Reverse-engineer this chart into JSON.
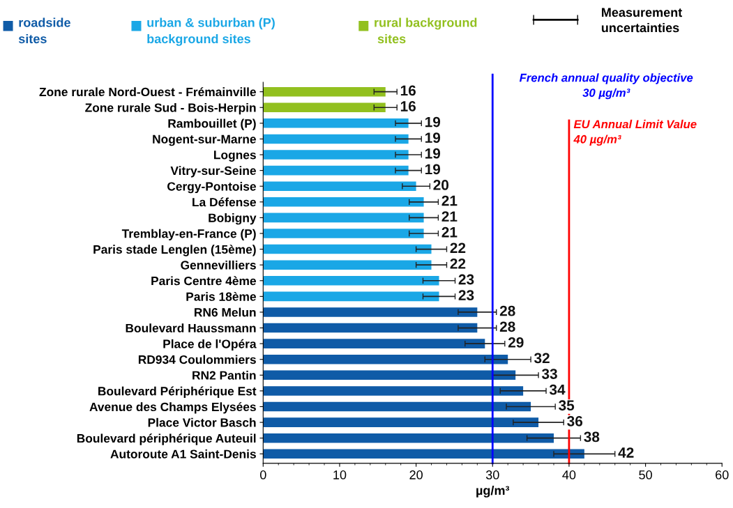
{
  "chart_data": {
    "type": "bar",
    "orientation": "horizontal",
    "stacked": false,
    "categories": [
      "Zone rurale Nord-Ouest - Frémainville",
      "Zone rurale Sud - Bois-Herpin",
      "Rambouillet (P)",
      "Nogent-sur-Marne",
      "Lognes",
      "Vitry-sur-Seine",
      "Cergy-Pontoise",
      "La Défense",
      "Bobigny",
      "Tremblay-en-France (P)",
      "Paris stade Lenglen (15ème)",
      "Gennevilliers",
      "Paris Centre 4ème",
      "Paris 18ème",
      "RN6 Melun",
      "Boulevard Haussmann",
      "Place de l'Opéra",
      "RD934 Coulommiers",
      "RN2 Pantin",
      "Boulevard Périphérique Est",
      "Avenue des Champs Elysées",
      "Place Victor Basch",
      "Boulevard périphérique Auteuil",
      "Autoroute A1 Saint-Denis"
    ],
    "series": [
      {
        "name": "roadside\nsites",
        "color": "#0f5ba7",
        "values": [
          null,
          null,
          null,
          null,
          null,
          null,
          null,
          null,
          null,
          null,
          null,
          null,
          null,
          null,
          28,
          28,
          29,
          32,
          33,
          34,
          35,
          36,
          38,
          42
        ],
        "errors": [
          null,
          null,
          null,
          null,
          null,
          null,
          null,
          null,
          null,
          null,
          null,
          null,
          null,
          null,
          2.5,
          2.5,
          2.6,
          3,
          3,
          3,
          3.2,
          3.3,
          3.5,
          4
        ]
      },
      {
        "name": "urban & suburban (P)\nbackground sites",
        "color": "#1aa7e6",
        "values": [
          null,
          null,
          19,
          19,
          19,
          19,
          20,
          21,
          21,
          21,
          22,
          22,
          23,
          23,
          null,
          null,
          null,
          null,
          null,
          null,
          null,
          null,
          null,
          null
        ],
        "errors": [
          null,
          null,
          1.7,
          1.7,
          1.7,
          1.7,
          1.8,
          1.9,
          1.9,
          1.9,
          2,
          2,
          2.1,
          2.1,
          null,
          null,
          null,
          null,
          null,
          null,
          null,
          null,
          null,
          null
        ]
      },
      {
        "name": "rural background\n sites",
        "color": "#92c01f",
        "values": [
          16,
          16,
          null,
          null,
          null,
          null,
          null,
          null,
          null,
          null,
          null,
          null,
          null,
          null,
          null,
          null,
          null,
          null,
          null,
          null,
          null,
          null,
          null,
          null
        ],
        "errors": [
          1.5,
          1.5,
          null,
          null,
          null,
          null,
          null,
          null,
          null,
          null,
          null,
          null,
          null,
          null,
          null,
          null,
          null,
          null,
          null,
          null,
          null,
          null,
          null,
          null
        ]
      }
    ],
    "xlabel": "µg/m³",
    "xlim": [
      0,
      60
    ],
    "xticks": [
      0,
      10,
      20,
      30,
      40,
      50,
      60
    ],
    "data_labels": true,
    "grid": false,
    "legend": "top",
    "ref_lines": [
      {
        "axis": "x",
        "value": 30,
        "label": "French annual quality objective\n30 µg/m³",
        "color": "#0000ff"
      },
      {
        "axis": "x",
        "value": 40,
        "label": "EU Annual Limit Value\n40 µg/m³",
        "color": "#ff0000"
      }
    ],
    "annotations": [
      "Measurement\nuncertainties"
    ]
  }
}
